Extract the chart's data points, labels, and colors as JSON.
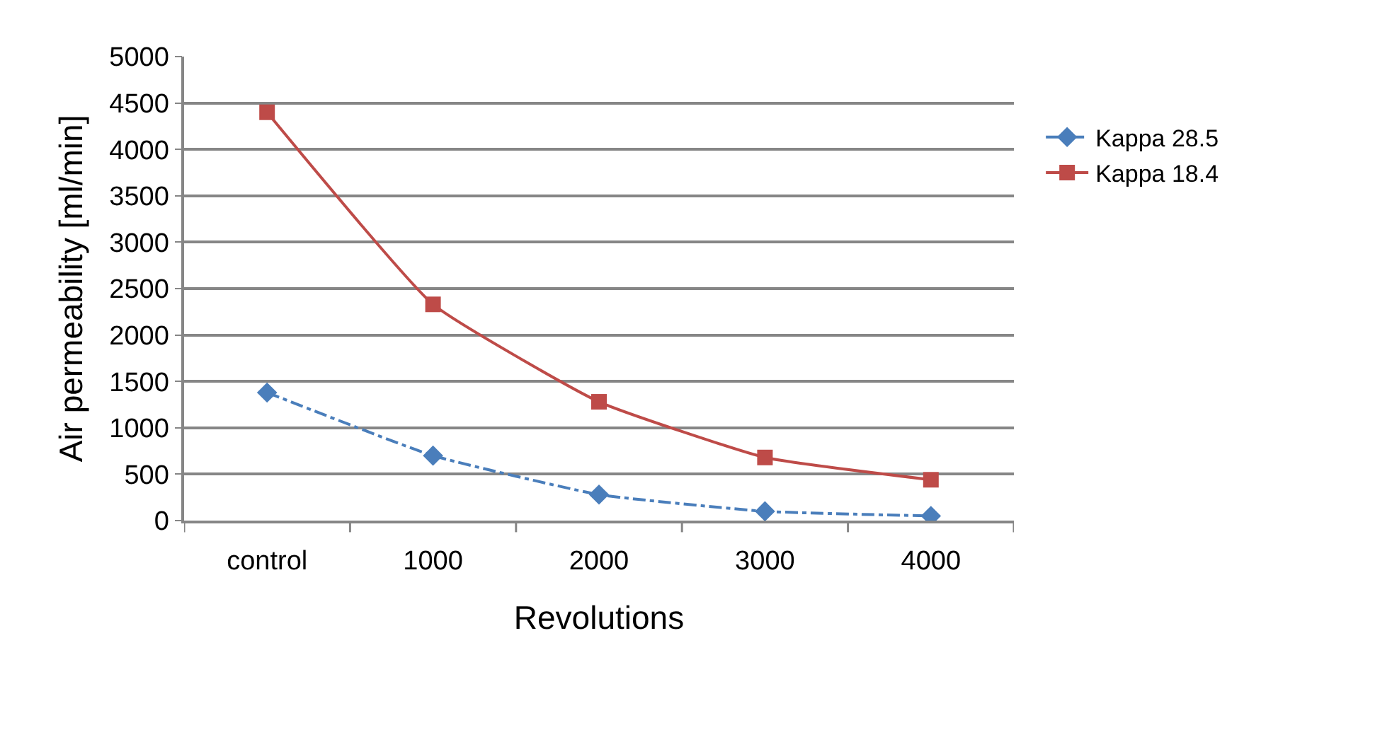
{
  "chart_data": {
    "type": "line",
    "xlabel": "Revolutions",
    "ylabel": "Air permeability [ml/min]",
    "categories": [
      "control",
      "1000",
      "2000",
      "3000",
      "4000"
    ],
    "series": [
      {
        "name": "Kappa 28.5",
        "color": "#4a7ebb",
        "values": [
          1380,
          700,
          280,
          100,
          50
        ],
        "marker": "diamond",
        "line_style": "dashdot"
      },
      {
        "name": "Kappa 18.4",
        "color": "#be4b48",
        "values": [
          4400,
          2330,
          1280,
          680,
          440
        ],
        "marker": "square",
        "line_style": "solid"
      }
    ],
    "ylim": [
      0,
      5000
    ],
    "yticks": [
      0,
      500,
      1000,
      1500,
      2000,
      2500,
      3000,
      3500,
      4000,
      4500,
      5000
    ],
    "grid": "y",
    "legend": "right"
  }
}
